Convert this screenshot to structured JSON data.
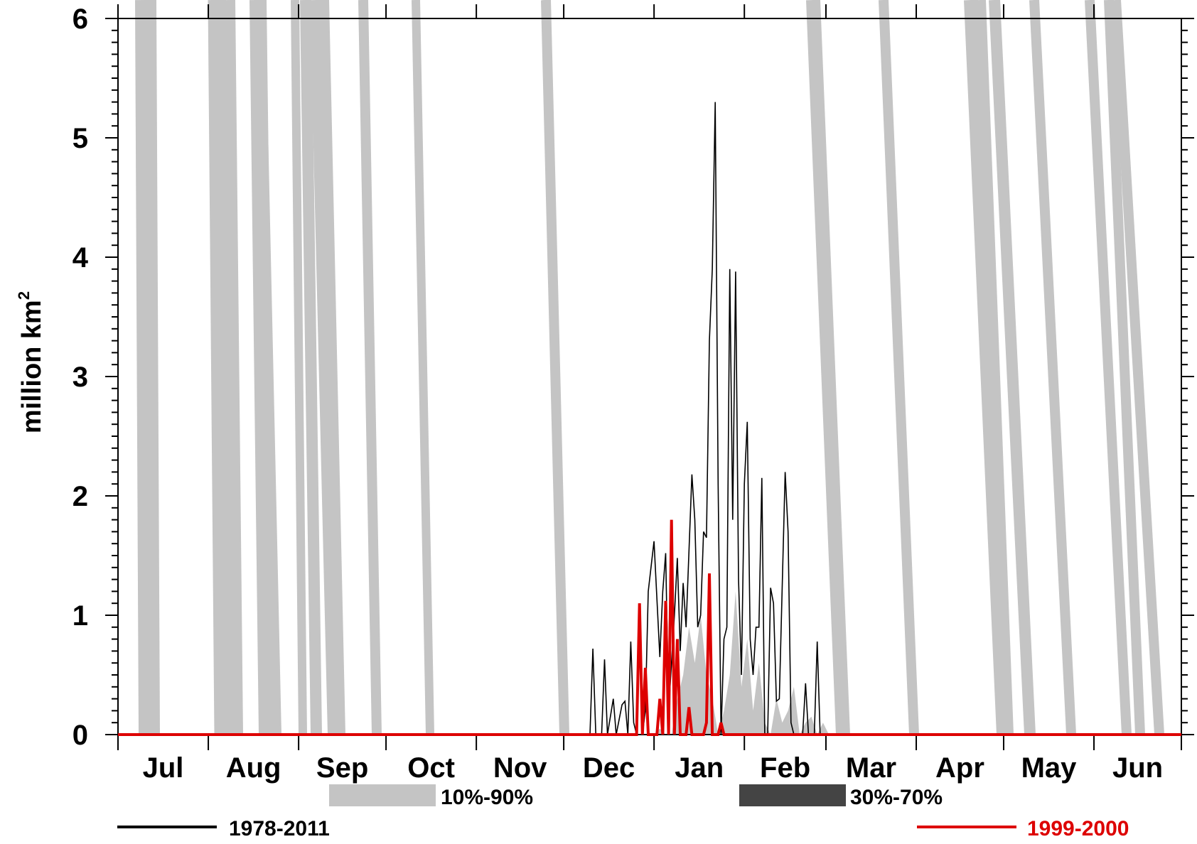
{
  "chart_data": {
    "type": "line",
    "title": "",
    "xlabel": "",
    "ylabel": "million km",
    "ylabel_superscript": "2",
    "ylim": [
      0,
      6
    ],
    "yticks": [
      "0",
      "1",
      "2",
      "3",
      "4",
      "5",
      "6"
    ],
    "months": [
      "Jul",
      "Aug",
      "Sep",
      "Oct",
      "Nov",
      "Dec",
      "Jan",
      "Feb",
      "Mar",
      "Apr",
      "May",
      "Jun"
    ],
    "legend": {
      "band_10_90": {
        "label": "10%-90%",
        "color": "#c4c4c4"
      },
      "band_30_70": {
        "label": "30%-70%",
        "color": "#444444"
      },
      "series_clim": {
        "label": "1978-2011",
        "color": "#000000"
      },
      "series_year": {
        "label": "1999-2000",
        "color": "#dd0000"
      }
    },
    "band_10_90_upper": [
      [
        184,
        0
      ],
      [
        186,
        0.05
      ],
      [
        188,
        0
      ],
      [
        190,
        0
      ],
      [
        192,
        0.3
      ],
      [
        194,
        0.5
      ],
      [
        196,
        0.9
      ],
      [
        198,
        0.6
      ],
      [
        200,
        1.0
      ],
      [
        202,
        0.5
      ],
      [
        204,
        0.3
      ],
      [
        206,
        0
      ],
      [
        208,
        0.2
      ],
      [
        210,
        0.5
      ],
      [
        212,
        1.2
      ],
      [
        214,
        0.4
      ],
      [
        216,
        0.8
      ],
      [
        218,
        0.2
      ],
      [
        220,
        0.6
      ],
      [
        222,
        0.1
      ],
      [
        224,
        0
      ],
      [
        226,
        0.3
      ],
      [
        228,
        0.1
      ],
      [
        230,
        0.2
      ],
      [
        232,
        0.4
      ],
      [
        234,
        0
      ],
      [
        236,
        0.1
      ],
      [
        238,
        0.15
      ],
      [
        240,
        0
      ],
      [
        242,
        0.1
      ],
      [
        244,
        0
      ]
    ],
    "series": [
      {
        "name": "1978-2011",
        "color": "#000000",
        "points": [
          [
            0,
            0
          ],
          [
            162,
            0
          ],
          [
            163,
            0.72
          ],
          [
            164,
            0
          ],
          [
            166,
            0
          ],
          [
            167,
            0.63
          ],
          [
            168,
            0
          ],
          [
            170,
            0.3
          ],
          [
            171,
            0
          ],
          [
            173,
            0.25
          ],
          [
            174,
            0.28
          ],
          [
            175,
            0
          ],
          [
            176,
            0.78
          ],
          [
            177,
            0.1
          ],
          [
            178,
            0
          ],
          [
            180,
            0
          ],
          [
            181,
            0.2
          ],
          [
            182,
            1.2
          ],
          [
            184,
            1.62
          ],
          [
            186,
            0.65
          ],
          [
            187,
            1.2
          ],
          [
            188,
            1.52
          ],
          [
            189,
            0.2
          ],
          [
            191,
            1.0
          ],
          [
            192,
            1.48
          ],
          [
            193,
            0.7
          ],
          [
            194,
            1.27
          ],
          [
            195,
            0.9
          ],
          [
            197,
            2.18
          ],
          [
            198,
            1.8
          ],
          [
            199,
            0.9
          ],
          [
            200,
            1.0
          ],
          [
            201,
            1.7
          ],
          [
            202,
            1.65
          ],
          [
            203,
            3.3
          ],
          [
            204,
            3.9
          ],
          [
            205,
            5.3
          ],
          [
            206,
            2.1
          ],
          [
            207,
            0
          ],
          [
            208,
            0.8
          ],
          [
            209,
            0.9
          ],
          [
            210,
            3.9
          ],
          [
            211,
            1.8
          ],
          [
            212,
            3.88
          ],
          [
            213,
            1.3
          ],
          [
            214,
            0.5
          ],
          [
            215,
            2.1
          ],
          [
            216,
            2.62
          ],
          [
            217,
            0.8
          ],
          [
            218,
            0.5
          ],
          [
            219,
            0.9
          ],
          [
            220,
            0.9
          ],
          [
            221,
            2.15
          ],
          [
            222,
            0
          ],
          [
            223,
            0
          ],
          [
            224,
            1.23
          ],
          [
            225,
            1.1
          ],
          [
            226,
            0.28
          ],
          [
            227,
            0.3
          ],
          [
            229,
            2.2
          ],
          [
            230,
            1.7
          ],
          [
            231,
            0.1
          ],
          [
            232,
            0
          ],
          [
            235,
            0
          ],
          [
            236,
            0.43
          ],
          [
            237,
            0
          ],
          [
            238,
            0
          ],
          [
            239,
            0
          ],
          [
            240,
            0.78
          ],
          [
            241,
            0
          ],
          [
            365,
            0
          ]
        ]
      },
      {
        "name": "1999-2000",
        "color": "#dd0000",
        "points": [
          [
            0,
            0
          ],
          [
            178,
            0
          ],
          [
            179,
            1.1
          ],
          [
            180,
            0
          ],
          [
            181,
            0.56
          ],
          [
            182,
            0
          ],
          [
            185,
            0
          ],
          [
            186,
            0.3
          ],
          [
            187,
            0
          ],
          [
            188,
            1.12
          ],
          [
            189,
            0
          ],
          [
            190,
            1.8
          ],
          [
            191,
            0
          ],
          [
            192,
            0.8
          ],
          [
            193,
            0
          ],
          [
            195,
            0
          ],
          [
            196,
            0.23
          ],
          [
            197,
            0
          ],
          [
            201,
            0
          ],
          [
            202,
            0.1
          ],
          [
            203,
            1.35
          ],
          [
            204,
            0
          ],
          [
            206,
            0
          ],
          [
            207,
            0.1
          ],
          [
            208,
            0
          ],
          [
            365,
            0
          ]
        ]
      }
    ]
  }
}
